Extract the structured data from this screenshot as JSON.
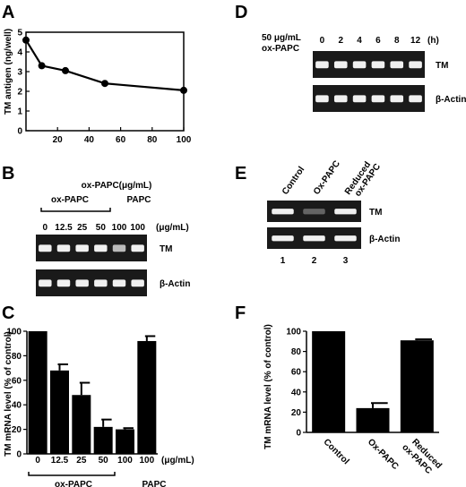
{
  "panels": {
    "A": {
      "label": "A"
    },
    "B": {
      "label": "B"
    },
    "C": {
      "label": "C"
    },
    "D": {
      "label": "D"
    },
    "E": {
      "label": "E"
    },
    "F": {
      "label": "F"
    }
  },
  "gels": {
    "B": {
      "group1": "ox-PAPC",
      "group2": "PAPC",
      "lanes": [
        "0",
        "12.5",
        "25",
        "50",
        "100",
        "100"
      ],
      "unit": "(μg/mL)",
      "row1": "TM",
      "row2": "β-Actin",
      "band_intensity_tm": [
        1,
        1,
        1,
        1,
        0.75,
        1
      ],
      "band_intensity_actin": [
        1,
        1,
        1,
        1,
        1,
        1
      ]
    },
    "D": {
      "treatment_line1": "50 μg/mL",
      "treatment_line2": "ox-PAPC",
      "lanes": [
        "0",
        "2",
        "4",
        "6",
        "8",
        "12"
      ],
      "unit": "(h)",
      "row1": "TM",
      "row2": "β-Actin"
    },
    "E": {
      "lanes": [
        "Control",
        "Ox-PAPC",
        "Reduced ox-PAPC"
      ],
      "lane_line1": [
        "Control",
        "Ox-PAPC",
        "Reduced"
      ],
      "lane_line2": [
        "",
        "",
        "ox-PAPC"
      ],
      "lane_numbers": [
        "1",
        "2",
        "3"
      ],
      "row1": "TM",
      "row2": "β-Actin",
      "band_intensity_tm": [
        1,
        0.35,
        1
      ]
    }
  },
  "chart_data": [
    {
      "panel": "A",
      "type": "line",
      "title": "",
      "xlabel": "ox-PAPC(μg/mL)",
      "ylabel": "TM antigen (ng/well)",
      "x": [
        0,
        10,
        25,
        50,
        100
      ],
      "series": [
        {
          "values": [
            4.6,
            3.3,
            3.05,
            2.4,
            2.05
          ]
        }
      ],
      "xlim": [
        0,
        100
      ],
      "ylim": [
        0,
        5
      ],
      "xticks": [
        "20",
        "40",
        "60",
        "80",
        "100"
      ],
      "yticks": [
        "0",
        "1",
        "2",
        "3",
        "4",
        "5"
      ],
      "grid": false
    },
    {
      "panel": "C",
      "type": "bar",
      "title": "",
      "ylabel": "TM mRNA level (% of control)",
      "categories": [
        "0",
        "12.5",
        "25",
        "50",
        "100",
        "100"
      ],
      "values": [
        100,
        68,
        48,
        22,
        20,
        92
      ],
      "errors": [
        0,
        5,
        10,
        6,
        1,
        4
      ],
      "unit": "(μg/mL)",
      "group_labels": [
        "ox-PAPC",
        "PAPC"
      ],
      "ylim": [
        0,
        100
      ],
      "yticks": [
        "0",
        "20",
        "40",
        "60",
        "80",
        "100"
      ],
      "grid": false
    },
    {
      "panel": "F",
      "type": "bar",
      "title": "",
      "ylabel": "TM mRNA level (% of control)",
      "categories": [
        "Control",
        "Ox-PAPC",
        "Reduced ox-PAPC"
      ],
      "cat_line1": [
        "Control",
        "Ox-PAPC",
        "Reduced"
      ],
      "cat_line2": [
        "",
        "",
        "ox-PAPC"
      ],
      "values": [
        100,
        24,
        91
      ],
      "errors": [
        0,
        5,
        1
      ],
      "ylim": [
        0,
        100
      ],
      "yticks": [
        "0",
        "20",
        "40",
        "60",
        "80",
        "100"
      ],
      "grid": false
    }
  ]
}
